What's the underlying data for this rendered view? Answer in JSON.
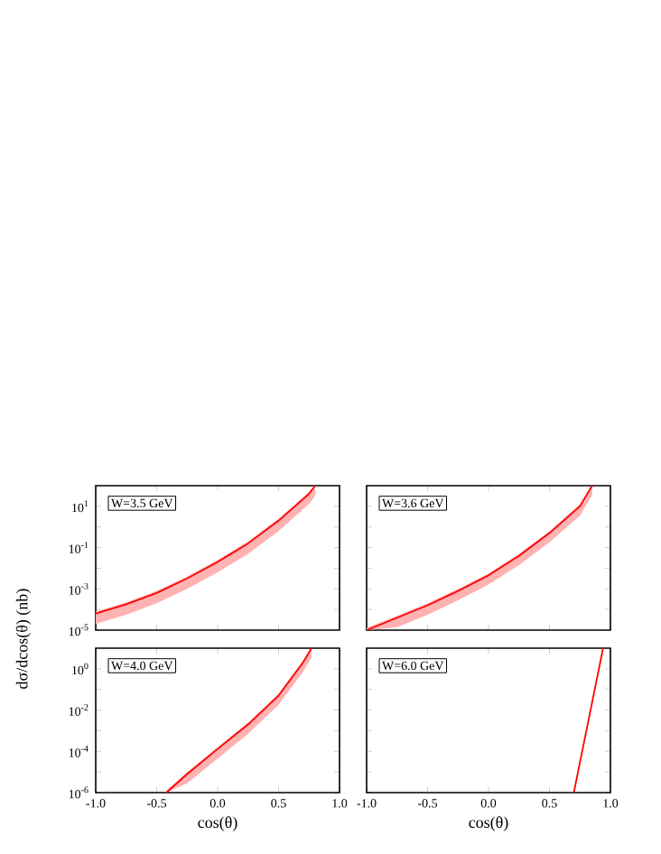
{
  "chart_data": [
    {
      "type": "line",
      "log": "y",
      "ylabel": "dσ/dcos(θ) (nb)",
      "annotations": [
        "W=3.5 GeV"
      ],
      "tick_labels": "y",
      "xlim": [
        -1.0,
        1.0
      ],
      "xticks": [
        {
          "value": -1.0,
          "label": null
        },
        {
          "value": -0.5,
          "label": null
        },
        {
          "value": 0.0,
          "label": null
        },
        {
          "value": 0.5,
          "label": null
        },
        {
          "value": 1.0,
          "label": null
        }
      ],
      "ylim": [
        1e-05,
        100
      ],
      "yticks": [
        {
          "value": 1e-05,
          "label": "10$^{-5}$"
        },
        {
          "value": 0.0001,
          "label": null
        },
        {
          "value": 0.001,
          "label": "10$^{-3}$"
        },
        {
          "value": 0.01,
          "label": null
        },
        {
          "value": 0.1,
          "label": "10$^{-1}$"
        },
        {
          "value": 1,
          "label": null
        },
        {
          "value": 10,
          "label": "10$^{1}$"
        }
      ],
      "series": [
        {
          "color": "#ff0000",
          "x": [
            -1.0,
            -0.75,
            -0.5,
            -0.25,
            0.0,
            0.25,
            0.5,
            0.75,
            0.8
          ],
          "values": [
            6.3e-05,
            0.00018,
            0.00063,
            0.0032,
            0.02,
            0.16,
            2.0,
            40,
            100
          ],
          "lower": [
            2e-05,
            5.6e-05,
            0.0002,
            0.001,
            0.0063,
            0.05,
            0.63,
            13,
            32
          ],
          "upper": [
            7.9e-05,
            0.00022,
            0.00079,
            0.004,
            0.025,
            0.2,
            2.5,
            50,
            100
          ]
        }
      ]
    },
    {
      "type": "line",
      "log": "y",
      "annotations": [
        "W=3.6 GeV"
      ],
      "tick_labels": false,
      "xlim": [
        -1.0,
        1.0
      ],
      "xticks": [
        {
          "value": -1.0,
          "label": null
        },
        {
          "value": -0.5,
          "label": null
        },
        {
          "value": 0.0,
          "label": null
        },
        {
          "value": 0.5,
          "label": null
        },
        {
          "value": 1.0,
          "label": null
        }
      ],
      "ylim": [
        1e-05,
        100
      ],
      "yticks": [
        {
          "value": 1e-05,
          "label": null
        },
        {
          "value": 0.0001,
          "label": null
        },
        {
          "value": 0.001,
          "label": null
        },
        {
          "value": 0.01,
          "label": null
        },
        {
          "value": 0.1,
          "label": null
        },
        {
          "value": 1,
          "label": null
        },
        {
          "value": 10,
          "label": null
        }
      ],
      "series": [
        {
          "color": "#ff0000",
          "x": [
            -1.0,
            -0.75,
            -0.5,
            -0.25,
            0.0,
            0.25,
            0.5,
            0.75,
            0.85
          ],
          "values": [
            1e-05,
            4e-05,
            0.00016,
            0.00079,
            0.0045,
            0.04,
            0.5,
            10,
            100
          ],
          "lower": [
            1e-05,
            1.4e-05,
            5.6e-05,
            0.00028,
            0.0016,
            0.014,
            0.18,
            3.5,
            35
          ],
          "upper": [
            1.3e-05,
            5e-05,
            0.0002,
            0.001,
            0.0056,
            0.05,
            0.63,
            13,
            100
          ]
        }
      ]
    },
    {
      "type": "line",
      "log": "y",
      "xlabel": "cos(θ)",
      "annotations": [
        "W=4.0 GeV"
      ],
      "xlim": [
        -1.0,
        1.0
      ],
      "xticks": [
        {
          "value": -1.0,
          "label": "-1.0"
        },
        {
          "value": -0.5,
          "label": "-0.5"
        },
        {
          "value": 0.0,
          "label": "0.0"
        },
        {
          "value": 0.5,
          "label": "0.5"
        },
        {
          "value": 1.0,
          "label": "1.0"
        }
      ],
      "ylim": [
        1e-06,
        10
      ],
      "yticks": [
        {
          "value": 1e-06,
          "label": "10$^{-6}$"
        },
        {
          "value": 1e-05,
          "label": null
        },
        {
          "value": 0.0001,
          "label": "10$^{-4}$"
        },
        {
          "value": 0.001,
          "label": null
        },
        {
          "value": 0.01,
          "label": "10$^{-2}$"
        },
        {
          "value": 0.1,
          "label": null
        },
        {
          "value": 1,
          "label": "10$^{0}$"
        }
      ],
      "series": [
        {
          "color": "#ff0000",
          "x": [
            -0.42,
            -0.25,
            0.0,
            0.25,
            0.5,
            0.7,
            0.77
          ],
          "values": [
            1e-06,
            7.9e-06,
            0.00013,
            0.002,
            0.05,
            2.0,
            10
          ],
          "lower": [
            1e-06,
            2.8e-06,
            4.5e-05,
            0.00071,
            0.018,
            0.71,
            3.5
          ],
          "upper": [
            1.3e-06,
            1e-05,
            0.00016,
            0.0025,
            0.063,
            2.5,
            10
          ]
        }
      ]
    },
    {
      "type": "line",
      "log": "y",
      "xlabel": "cos(θ)",
      "annotations": [
        "W=6.0 GeV"
      ],
      "tick_labels": "x",
      "xlim": [
        -1.0,
        1.0
      ],
      "xticks": [
        {
          "value": -1.0,
          "label": "-1.0"
        },
        {
          "value": -0.5,
          "label": "-0.5"
        },
        {
          "value": 0.0,
          "label": "0.0"
        },
        {
          "value": 0.5,
          "label": "0.5"
        },
        {
          "value": 1.0,
          "label": "1.0"
        }
      ],
      "ylim": [
        1e-06,
        10
      ],
      "yticks": [
        {
          "value": 1e-06,
          "label": null
        },
        {
          "value": 1e-05,
          "label": null
        },
        {
          "value": 0.0001,
          "label": null
        },
        {
          "value": 0.001,
          "label": null
        },
        {
          "value": 0.01,
          "label": null
        },
        {
          "value": 0.1,
          "label": null
        },
        {
          "value": 1,
          "label": null
        }
      ],
      "series": [
        {
          "color": "#ff0000",
          "x": [
            0.7,
            0.94
          ],
          "values": [
            1e-06,
            10
          ]
        }
      ]
    }
  ]
}
